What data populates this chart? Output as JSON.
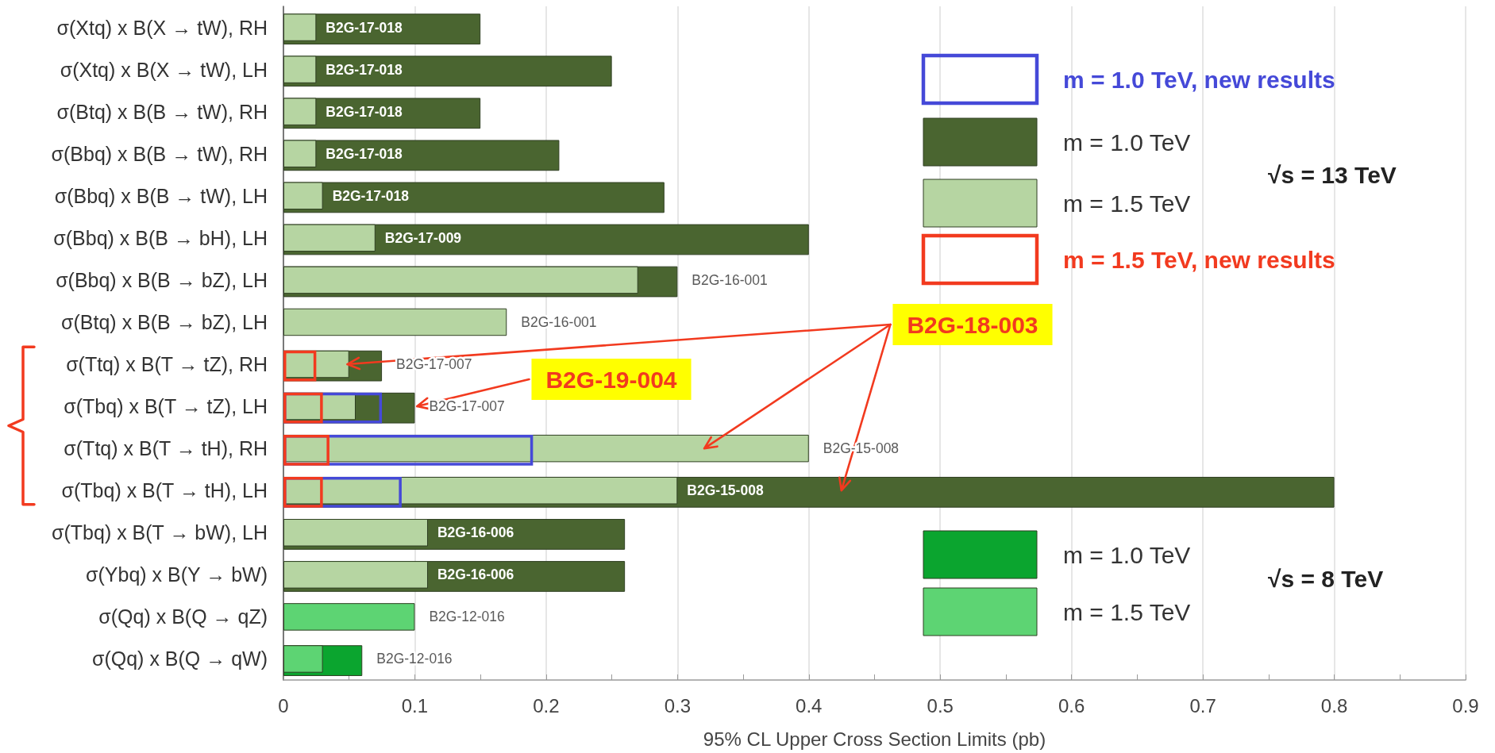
{
  "chart_data": {
    "type": "bar",
    "orientation": "horizontal",
    "categories": [
      "σ(Xtq) x B(X → tW), RH",
      "σ(Xtq) x B(X → tW), LH",
      "σ(Btq) x B(B → tW), RH",
      "σ(Bbq) x B(B → tW), RH",
      "σ(Bbq) x B(B → tW), LH",
      "σ(Bbq) x B(B → bH), LH",
      "σ(Bbq) x B(B → bZ), LH",
      "σ(Btq) x B(B → bZ), LH",
      "σ(Ttq) x B(T → tZ), RH",
      "σ(Tbq) x B(T → tZ), LH",
      "σ(Ttq) x B(T → tH), RH",
      "σ(Tbq) x B(T → tH), LH",
      "σ(Tbq) x B(T → bW), LH",
      "σ(Ybq) x B(Y → bW)",
      "σ(Qq) x B(Q → qZ)",
      "σ(Qq) x B(Q → qW)"
    ],
    "series": [
      {
        "name": "m = 1.0 TeV, new results",
        "color": "#4549d8",
        "line_style": "solid",
        "values": [
          null,
          null,
          null,
          null,
          null,
          null,
          null,
          null,
          null,
          0.075,
          0.19,
          0.09,
          null,
          null,
          null,
          null
        ]
      },
      {
        "name": "m = 1.0 TeV",
        "color": "#4a6530",
        "values": [
          0.15,
          0.25,
          0.15,
          0.21,
          0.29,
          0.4,
          0.3,
          null,
          0.075,
          0.1,
          null,
          0.8,
          0.26,
          0.26,
          null,
          null
        ]
      },
      {
        "name": "m = 1.5 TeV",
        "color": "#b6d5a2",
        "values": [
          0.025,
          0.025,
          0.025,
          0.025,
          0.03,
          0.07,
          0.27,
          0.17,
          0.05,
          0.055,
          0.4,
          0.3,
          0.11,
          0.11,
          null,
          null
        ]
      },
      {
        "name": "m = 1.5 TeV, new results",
        "color": "#f23a1f",
        "line_style": "solid",
        "values": [
          null,
          null,
          null,
          null,
          null,
          null,
          null,
          null,
          0.025,
          0.03,
          0.035,
          0.03,
          null,
          null,
          null,
          null
        ]
      },
      {
        "name": "m = 1.0 TeV",
        "color": "#0ba52f",
        "values": [
          null,
          null,
          null,
          null,
          null,
          null,
          null,
          null,
          null,
          null,
          null,
          null,
          null,
          null,
          null,
          0.06
        ]
      },
      {
        "name": "m = 1.5 TeV",
        "color": "#5dd473",
        "values": [
          null,
          null,
          null,
          null,
          null,
          null,
          null,
          null,
          null,
          null,
          null,
          null,
          null,
          null,
          0.1,
          0.03
        ]
      }
    ],
    "xlabel": "95% CL Upper Cross Section Limits (pb)",
    "xlim": [
      0,
      0.9
    ],
    "xticks": [
      0,
      {
        "value": 0.05,
        "label": null
      },
      0.1,
      {
        "value": 0.15,
        "label": null
      },
      0.2,
      {
        "value": 0.25,
        "label": null
      },
      0.3,
      {
        "value": 0.35,
        "label": null
      },
      0.4,
      {
        "value": 0.45,
        "label": null
      },
      0.5,
      {
        "value": 0.55,
        "label": null
      },
      0.6,
      {
        "value": 0.65,
        "label": null
      },
      0.7,
      {
        "value": 0.75,
        "label": null
      },
      0.8,
      {
        "value": 0.85,
        "label": null
      },
      0.9
    ],
    "grid": "x",
    "legend": "right",
    "annotations": [
      {
        "text": "B2G-17-018",
        "x": 0.025,
        "y": "σ(Xtq) x B(X → tW), RH"
      },
      {
        "text": "B2G-17-018",
        "x": 0.025,
        "y": "σ(Xtq) x B(X → tW), LH"
      },
      {
        "text": "B2G-17-018",
        "x": 0.025,
        "y": "σ(Btq) x B(B → tW), RH"
      },
      {
        "text": "B2G-17-018",
        "x": 0.025,
        "y": "σ(Bbq) x B(B → tW), RH"
      },
      {
        "text": "B2G-17-018",
        "x": 0.03,
        "y": "σ(Bbq) x B(B → tW), LH"
      },
      {
        "text": "B2G-17-009",
        "x": 0.07,
        "y": "σ(Bbq) x B(B → bH), LH"
      },
      {
        "text": "B2G-16-001",
        "x": 0.3,
        "y": "σ(Bbq) x B(B → bZ), LH"
      },
      {
        "text": "B2G-16-001",
        "x": 0.17,
        "y": "σ(Btq) x B(B → bZ), LH"
      },
      {
        "text": "B2G-17-007",
        "x": 0.075,
        "y": "σ(Ttq) x B(T → tZ), RH"
      },
      {
        "text": "B2G-17-007",
        "x": 0.1,
        "y": "σ(Tbq) x B(T → tZ), LH"
      },
      {
        "text": "B2G-15-008",
        "x": 0.4,
        "y": "σ(Ttq) x B(T → tH), RH"
      },
      {
        "text": "B2G-15-008",
        "x": 0.3,
        "y": "σ(Tbq) x B(T → tH), LH"
      },
      {
        "text": "B2G-16-006",
        "x": 0.11,
        "y": "σ(Tbq) x B(T → bW), LH"
      },
      {
        "text": "B2G-16-006",
        "x": 0.11,
        "y": "σ(Ybq) x B(Y → bW)"
      },
      {
        "text": "B2G-12-016",
        "x": 0.1,
        "y": "σ(Qq) x B(Q → qZ)"
      },
      {
        "text": "B2G-12-016",
        "x": 0.06,
        "y": "σ(Qq) x B(Q → qW)"
      },
      "√s = 13 TeV",
      "√s = 8 TeV",
      "B2G-18-003",
      "B2G-19-004"
    ]
  }
}
